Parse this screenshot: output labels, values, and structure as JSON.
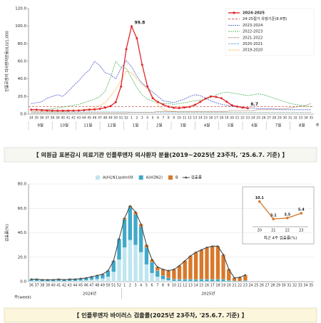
{
  "chart_data": [
    {
      "type": "line",
      "caption": "【 의원급 표본감시 의료기관 인플루엔자 의사환자 분율(2019~2025년 23주차, '25.6.7. 기준) 】",
      "y_label": "인플루엔자 의사환자분율(ILI)/1,000",
      "x_label": "주",
      "categories": [
        "34",
        "35",
        "36",
        "37",
        "38",
        "39",
        "40",
        "41",
        "42",
        "43",
        "44",
        "45",
        "46",
        "47",
        "48",
        "49",
        "50",
        "51",
        "52",
        "1",
        "2",
        "3",
        "4",
        "5",
        "6",
        "7",
        "8",
        "9",
        "10",
        "11",
        "12",
        "13",
        "14",
        "15",
        "16",
        "17",
        "18",
        "19",
        "20",
        "21",
        "22",
        "23",
        "24",
        "25",
        "26",
        "27",
        "28",
        "29",
        "30",
        "31",
        "32",
        "33",
        "34",
        "35"
      ],
      "months": [
        "9월",
        "10월",
        "11월",
        "12월",
        "1월",
        "2월",
        "3월",
        "4월",
        "5월",
        "6월",
        "7월",
        "8월"
      ],
      "ylim": [
        0,
        120
      ],
      "yticks": [
        {
          "value": 0,
          "label": "0.0"
        },
        {
          "value": 20,
          "label": "20.0"
        },
        {
          "value": 40,
          "label": "40.0"
        },
        {
          "value": 60,
          "label": "60.0"
        },
        {
          "value": 80,
          "label": "80.0"
        },
        {
          "value": 100,
          "label": "100.0"
        },
        {
          "value": 120,
          "label": "120.0"
        }
      ],
      "grid": false,
      "threshold": {
        "name": "24-25절기 유행기준(8.6명)",
        "value": 8.6,
        "color": "#c0392b"
      },
      "series": [
        {
          "name": "2024-2025",
          "color": "#e0262b",
          "markers": true,
          "values": [
            5,
            5,
            4.5,
            4.2,
            4,
            4,
            3.9,
            4,
            4,
            4.1,
            4.5,
            5,
            5.3,
            6,
            7.3,
            9,
            13.6,
            31.3,
            73.9,
            99.8,
            86.1,
            56,
            31.5,
            18,
            13.7,
            10.7,
            8.4,
            7.1,
            6.8,
            7.5,
            8.2,
            10.5,
            13.9,
            17.6,
            20.1,
            19.5,
            18,
            14,
            10,
            8.5,
            7.4,
            6.7,
            null,
            null,
            null,
            null,
            null,
            null,
            null,
            null,
            null,
            null,
            null,
            null
          ],
          "value_labels": [
            null,
            null,
            null,
            null,
            null,
            null,
            null,
            null,
            null,
            null,
            null,
            null,
            null,
            null,
            null,
            null,
            null,
            null,
            null,
            "99.8",
            null,
            null,
            null,
            null,
            null,
            null,
            null,
            null,
            null,
            null,
            null,
            null,
            null,
            null,
            null,
            null,
            null,
            null,
            null,
            null,
            null,
            "6.7",
            null,
            null,
            null,
            null,
            null,
            null,
            null,
            null,
            null,
            null,
            null,
            null
          ]
        },
        {
          "name": "2023-2024",
          "color": "#4b57c8",
          "values": [
            12,
            13,
            14,
            18,
            20,
            22,
            20,
            26,
            32,
            38,
            45,
            50,
            60,
            55,
            47,
            45,
            40,
            52,
            61,
            54,
            43,
            35,
            30,
            25,
            20,
            15,
            14,
            13,
            15,
            17,
            20,
            22,
            21,
            18,
            15,
            13,
            11,
            10,
            9,
            8,
            8,
            7,
            7,
            6,
            6,
            6,
            6,
            5,
            5,
            5,
            5,
            5,
            5,
            5
          ]
        },
        {
          "name": "2022-2023",
          "color": "#4cb85c",
          "values": [
            5,
            5,
            5,
            5,
            6,
            7,
            8,
            9,
            10,
            11,
            13,
            15,
            17,
            20,
            26,
            41,
            60,
            53,
            52,
            41,
            30,
            22,
            17,
            15,
            13,
            12,
            12,
            11,
            12,
            13,
            14,
            15,
            16,
            17,
            19,
            22,
            24,
            25,
            24,
            23,
            22,
            21,
            22,
            23,
            22,
            20,
            18,
            16,
            14,
            12,
            11,
            10,
            9,
            8
          ]
        },
        {
          "name": "2021-2022",
          "color": "#7a4a2a",
          "values": [
            1.5,
            1.5,
            1.5,
            1.5,
            1.5,
            1.5,
            1.5,
            1.5,
            1.5,
            1.5,
            1.5,
            1.5,
            1.5,
            1.5,
            1.5,
            1.5,
            1.5,
            1.5,
            1.5,
            2,
            2,
            2,
            2,
            2,
            3,
            3,
            3,
            3,
            3,
            3,
            3,
            3,
            3,
            3,
            3,
            3,
            3,
            3,
            4,
            4,
            4,
            4,
            4,
            5,
            5,
            5,
            5,
            6,
            6,
            7,
            8,
            9,
            10,
            12
          ]
        },
        {
          "name": "2020-2021",
          "color": "#7fb6e0",
          "values": [
            2.5,
            2.5,
            2.5,
            2.5,
            2.5,
            2.5,
            2.5,
            2.5,
            2.5,
            2.5,
            2.5,
            2.5,
            2.5,
            2.5,
            2.5,
            2.5,
            2.5,
            2.5,
            2.5,
            2,
            2,
            2,
            2,
            2,
            2,
            2,
            2,
            2,
            2,
            2,
            2,
            2,
            2,
            2,
            2,
            2,
            2,
            2,
            2,
            2,
            2,
            2,
            2,
            2,
            2,
            2,
            2,
            2,
            2,
            2,
            2,
            2,
            2,
            2
          ]
        },
        {
          "name": "2019-2020",
          "color": "#f0a830",
          "values": [
            3,
            3,
            3,
            3,
            3,
            3,
            3,
            3,
            4,
            4,
            5,
            6,
            7,
            10,
            13,
            20,
            28,
            38,
            49,
            47,
            40,
            34,
            28,
            20,
            10,
            5,
            3,
            3,
            2,
            2,
            2,
            2,
            2,
            2,
            2,
            2,
            2,
            2,
            2,
            2,
            2,
            2,
            2,
            2,
            2,
            2,
            2,
            2,
            2,
            2,
            2,
            2,
            2,
            2
          ]
        }
      ]
    },
    {
      "type": "bar",
      "caption": "【 인플루엔자 바이러스 검출률(2025년 23주차, '25.6.7. 기준) 】",
      "y_label": "검출률(%)",
      "x_label": "주(week)",
      "periods": [
        "2024년",
        "2025년"
      ],
      "categories": [
        "36",
        "37",
        "38",
        "39",
        "40",
        "41",
        "42",
        "43",
        "44",
        "45",
        "46",
        "47",
        "48",
        "49",
        "50",
        "51",
        "52",
        "1",
        "2",
        "3",
        "4",
        "5",
        "6",
        "7",
        "8",
        "9",
        "10",
        "11",
        "12",
        "13",
        "14",
        "15",
        "16",
        "17",
        "18",
        "19",
        "20",
        "21",
        "22",
        "23",
        "24",
        "25",
        "26",
        "27",
        "28",
        "29",
        "30",
        "31",
        "32",
        "33",
        "34",
        "35"
      ],
      "ylim": [
        0,
        80
      ],
      "yticks": [
        {
          "value": 0,
          "label": "0.0"
        },
        {
          "value": 20,
          "label": "20.0"
        },
        {
          "value": 40,
          "label": "40.0"
        },
        {
          "value": 60,
          "label": "60.0"
        },
        {
          "value": 80,
          "label": "80.0"
        }
      ],
      "grid": true,
      "series": [
        {
          "name": "A(H1N1)pdm09",
          "color": "#bfe6f0",
          "stack": true,
          "values": [
            0.5,
            0.5,
            0.3,
            0.3,
            0.3,
            0.5,
            0.3,
            0.5,
            0.5,
            0.8,
            1,
            1.5,
            2,
            2.5,
            4,
            8,
            18,
            28,
            34,
            30,
            24,
            14,
            7,
            4,
            2,
            1,
            0.5,
            0.5,
            0.3,
            0.3,
            0.2,
            0.2,
            0.2,
            0.2,
            0.2,
            0.2,
            0.1,
            0.1,
            0,
            0.2,
            null,
            null,
            null,
            null,
            null,
            null,
            null,
            null,
            null,
            null,
            null,
            null
          ]
        },
        {
          "name": "A(H3N2)",
          "color": "#3fa9c9",
          "stack": true,
          "values": [
            1.5,
            1.5,
            1.2,
            1.2,
            1.2,
            1.5,
            1.2,
            1.5,
            1.5,
            1.7,
            2,
            2.5,
            3,
            3.5,
            5,
            9,
            17,
            23,
            27,
            25,
            21,
            14,
            9,
            5,
            3,
            2,
            1.5,
            1.5,
            1.7,
            1.7,
            1.8,
            1.8,
            1.8,
            1.8,
            1.8,
            1.8,
            1,
            0.5,
            0.5,
            0.8,
            null,
            null,
            null,
            null,
            null,
            null,
            null,
            null,
            null,
            null,
            null,
            null
          ]
        },
        {
          "name": "B",
          "color": "#d9782a",
          "stack": true,
          "values": [
            0,
            0,
            0,
            0,
            0,
            0,
            0,
            0,
            0,
            0,
            0,
            0,
            0,
            0,
            0,
            0,
            0,
            1,
            1,
            2,
            2,
            2,
            2,
            3,
            5,
            6,
            8,
            11,
            15,
            19,
            22,
            24,
            26,
            27,
            27,
            20,
            9,
            2.5,
            3,
            4.4,
            null,
            null,
            null,
            null,
            null,
            null,
            null,
            null,
            null,
            null,
            null,
            null
          ]
        },
        {
          "name": "검출률",
          "color": "#4a4a4a",
          "type": "line",
          "values": [
            2,
            2,
            1.5,
            1.5,
            1.5,
            2,
            1.5,
            2,
            2,
            2.5,
            3,
            4,
            5,
            6,
            9,
            17,
            35,
            52,
            62,
            57,
            47,
            30,
            18,
            12,
            10,
            9,
            10,
            13,
            17,
            21,
            24,
            26,
            28,
            29,
            29,
            22,
            10.1,
            3.1,
            3.5,
            5.4,
            null,
            null,
            null,
            null,
            null,
            null,
            null,
            null,
            null,
            null,
            null,
            null
          ]
        }
      ]
    },
    {
      "type": "line",
      "title": "최근 4주 검출률(%)",
      "categories": [
        "20",
        "21",
        "22",
        "23"
      ],
      "ylim": [
        0,
        12
      ],
      "series": [
        {
          "name": "검출률",
          "color": "#d9782a",
          "markers": true,
          "values": [
            10.1,
            3.1,
            3.5,
            5.4
          ]
        }
      ]
    }
  ]
}
